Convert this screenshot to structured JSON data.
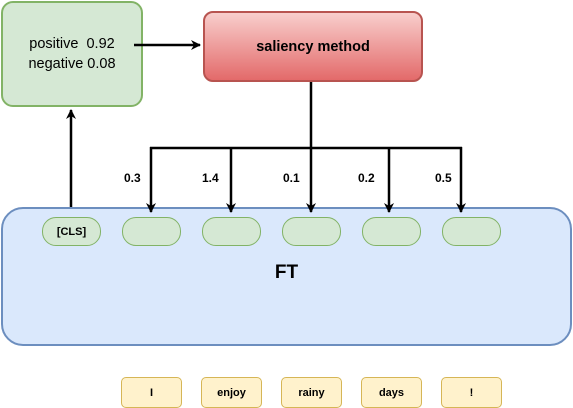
{
  "output": {
    "positive_line": "positive  0.92",
    "negative_line": "negative 0.08"
  },
  "saliency": {
    "label": "saliency method"
  },
  "model": {
    "label": "FT"
  },
  "cls_token": "[CLS]",
  "scores": [
    "0.3",
    "1.4",
    "0.1",
    "0.2",
    "0.5"
  ],
  "words": [
    "I",
    "enjoy",
    "rainy",
    "days",
    "!"
  ]
}
